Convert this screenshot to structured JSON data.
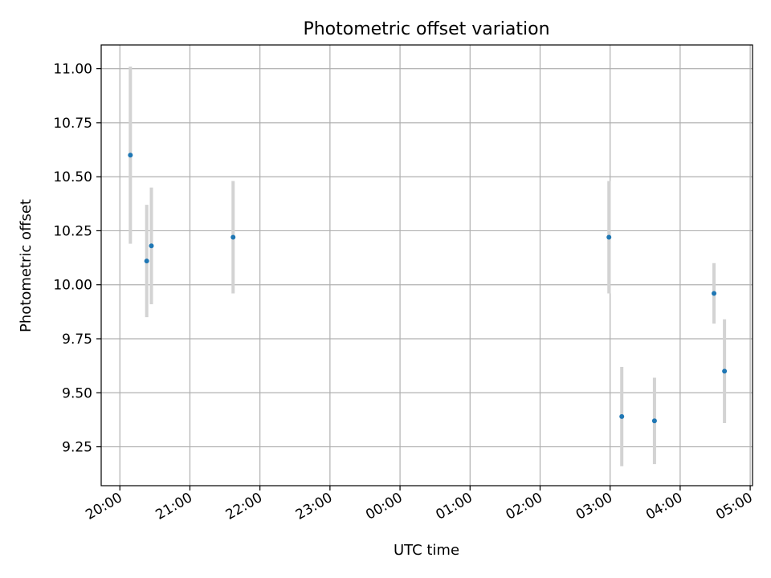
{
  "chart_data": {
    "type": "scatter",
    "title": "Photometric offset variation",
    "xlabel": "UTC time",
    "ylabel": "Photometric offset",
    "x_axis_type": "time",
    "xlim": [
      "19:44",
      "05:02"
    ],
    "ylim": [
      9.07,
      11.11
    ],
    "x_ticks": [
      "20:00",
      "21:00",
      "22:00",
      "23:00",
      "00:00",
      "01:00",
      "02:00",
      "03:00",
      "04:00",
      "05:00"
    ],
    "y_ticks": [
      "11.00",
      "10.75",
      "10.50",
      "10.25",
      "10.00",
      "9.75",
      "9.50",
      "9.25"
    ],
    "y_tick_values": [
      11.0,
      10.75,
      10.5,
      10.25,
      10.0,
      9.75,
      9.5,
      9.25
    ],
    "grid": true,
    "marker_color": "#1f77b4",
    "errorbar_color": "#d3d3d3",
    "points": [
      {
        "x": "20:09",
        "y": 10.6,
        "err": 0.41
      },
      {
        "x": "20:23",
        "y": 10.11,
        "err": 0.26
      },
      {
        "x": "20:27",
        "y": 10.18,
        "err": 0.27
      },
      {
        "x": "21:37",
        "y": 10.22,
        "err": 0.26
      },
      {
        "x": "02:59",
        "y": 10.22,
        "err": 0.26
      },
      {
        "x": "03:10",
        "y": 9.39,
        "err": 0.23
      },
      {
        "x": "03:38",
        "y": 9.37,
        "err": 0.2
      },
      {
        "x": "04:29",
        "y": 9.96,
        "err": 0.14
      },
      {
        "x": "04:38",
        "y": 9.6,
        "err": 0.24
      }
    ]
  }
}
